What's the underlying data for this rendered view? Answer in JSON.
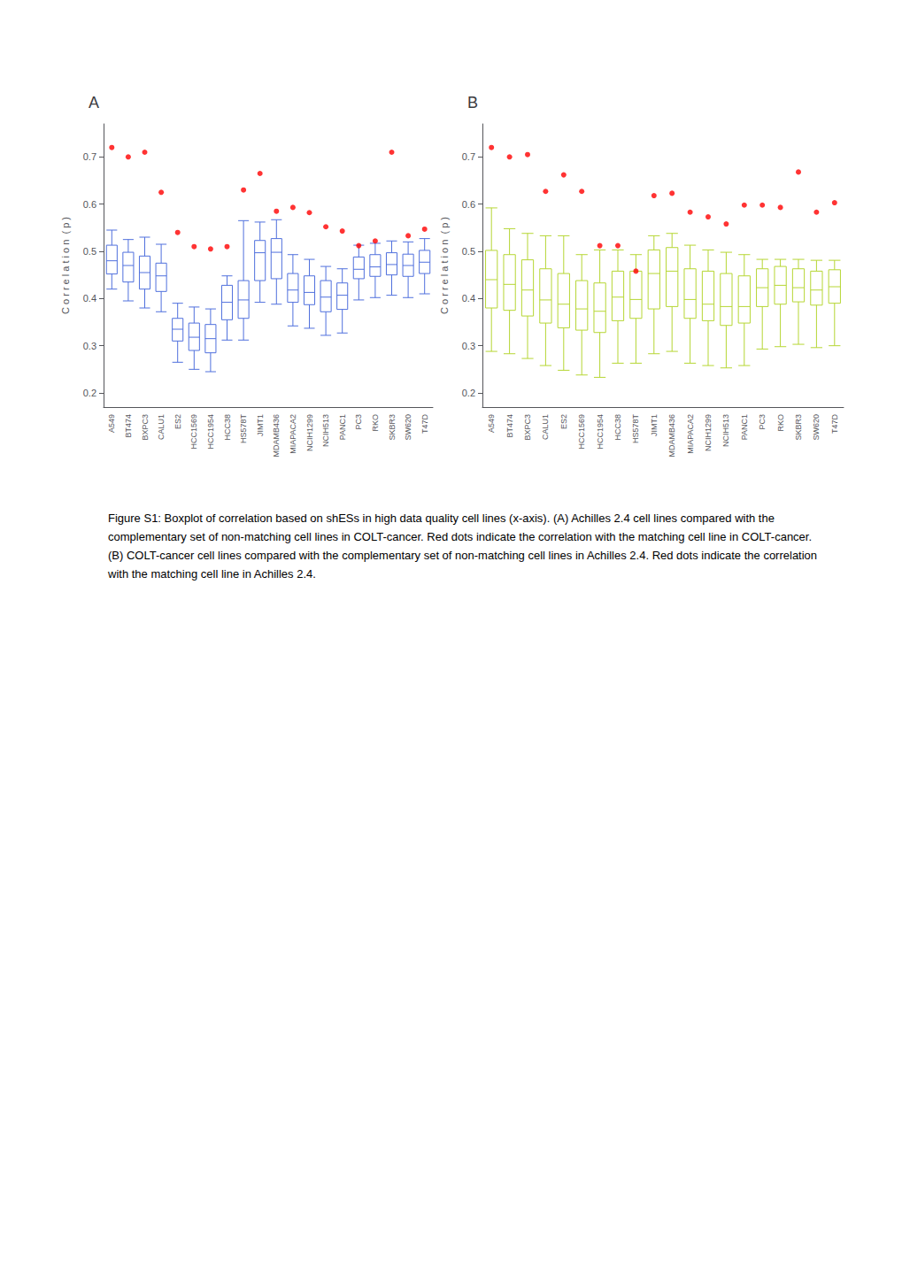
{
  "chart_data": [
    {
      "type": "box",
      "title": "A",
      "y_label": "C o r r e l a t i o n  ( p )",
      "categories": [
        "A549",
        "BT474",
        "BXPC3",
        "CALU1",
        "ES2",
        "HCC1569",
        "HCC1954",
        "HCC38",
        "HS578T",
        "JIMT1",
        "MDAMB436",
        "MIAPACA2",
        "NCIH1299",
        "NCIH513",
        "PANC1",
        "PC3",
        "RKO",
        "SKBR3",
        "SW620",
        "T47D"
      ],
      "series": [
        {
          "type": "box",
          "values": [
            {
              "whisker_low": 0.42,
              "q1": 0.452,
              "median": 0.48,
              "q3": 0.513,
              "whisker_high": 0.545
            },
            {
              "whisker_low": 0.395,
              "q1": 0.435,
              "median": 0.47,
              "q3": 0.498,
              "whisker_high": 0.525
            },
            {
              "whisker_low": 0.38,
              "q1": 0.42,
              "median": 0.455,
              "q3": 0.49,
              "whisker_high": 0.53
            },
            {
              "whisker_low": 0.372,
              "q1": 0.415,
              "median": 0.448,
              "q3": 0.475,
              "whisker_high": 0.515
            },
            {
              "whisker_low": 0.265,
              "q1": 0.31,
              "median": 0.335,
              "q3": 0.358,
              "whisker_high": 0.39
            },
            {
              "whisker_low": 0.25,
              "q1": 0.29,
              "median": 0.318,
              "q3": 0.348,
              "whisker_high": 0.382
            },
            {
              "whisker_low": 0.245,
              "q1": 0.285,
              "median": 0.315,
              "q3": 0.345,
              "whisker_high": 0.378
            },
            {
              "whisker_low": 0.312,
              "q1": 0.355,
              "median": 0.392,
              "q3": 0.428,
              "whisker_high": 0.448
            },
            {
              "whisker_low": 0.312,
              "q1": 0.358,
              "median": 0.397,
              "q3": 0.438,
              "whisker_high": 0.565
            },
            {
              "whisker_low": 0.392,
              "q1": 0.438,
              "median": 0.497,
              "q3": 0.523,
              "whisker_high": 0.562
            },
            {
              "whisker_low": 0.388,
              "q1": 0.442,
              "median": 0.498,
              "q3": 0.527,
              "whisker_high": 0.567
            },
            {
              "whisker_low": 0.342,
              "q1": 0.392,
              "median": 0.418,
              "q3": 0.453,
              "whisker_high": 0.493
            },
            {
              "whisker_low": 0.337,
              "q1": 0.387,
              "median": 0.413,
              "q3": 0.448,
              "whisker_high": 0.483
            },
            {
              "whisker_low": 0.322,
              "q1": 0.372,
              "median": 0.403,
              "q3": 0.438,
              "whisker_high": 0.468
            },
            {
              "whisker_low": 0.327,
              "q1": 0.377,
              "median": 0.407,
              "q3": 0.433,
              "whisker_high": 0.463
            },
            {
              "whisker_low": 0.397,
              "q1": 0.442,
              "median": 0.462,
              "q3": 0.488,
              "whisker_high": 0.513
            },
            {
              "whisker_low": 0.402,
              "q1": 0.447,
              "median": 0.467,
              "q3": 0.493,
              "whisker_high": 0.517
            },
            {
              "whisker_low": 0.407,
              "q1": 0.45,
              "median": 0.472,
              "q3": 0.497,
              "whisker_high": 0.522
            },
            {
              "whisker_low": 0.402,
              "q1": 0.447,
              "median": 0.47,
              "q3": 0.494,
              "whisker_high": 0.52
            },
            {
              "whisker_low": 0.41,
              "q1": 0.453,
              "median": 0.477,
              "q3": 0.502,
              "whisker_high": 0.527
            }
          ]
        },
        {
          "type": "scatter",
          "color": "#ff0000",
          "values": [
            0.72,
            0.7,
            0.71,
            0.625,
            0.54,
            0.51,
            0.505,
            0.51,
            0.63,
            0.665,
            0.585,
            0.593,
            0.582,
            0.552,
            0.543,
            0.512,
            0.522,
            0.71,
            0.533,
            0.547
          ]
        }
      ],
      "ylim": [
        0.17,
        0.77
      ],
      "yticks": [
        0.2,
        0.3,
        0.4,
        0.5,
        0.6,
        0.7
      ],
      "grid": false,
      "annotations": [
        "Figure S1: Boxplot of correlation based on shESs in high data quality cell lines (x-axis). (A) Achilles 2.4 cell lines compared with the complementary set of non-matching cell lines in COLT-cancer. Red dots indicate the correlation with the matching cell line in COLT-cancer. (B) COLT-cancer cell lines compared with the complementary set of non-matching cell lines in Achilles 2.4. Red dots indicate the correlation with the matching cell line in Achilles 2.4."
      ]
    },
    {
      "type": "box",
      "title": "B",
      "y_label": "C o r r e l a t i o n  ( p )",
      "categories": [
        "A549",
        "BT474",
        "BXPC3",
        "CALU1",
        "ES2",
        "HCC1569",
        "HCC1954",
        "HCC38",
        "HS578T",
        "JIMT1",
        "MDAMB436",
        "MIAPACA2",
        "NCIH1299",
        "NCIH513",
        "PANC1",
        "PC3",
        "RKO",
        "SKBR3",
        "SW620",
        "T47D"
      ],
      "series": [
        {
          "type": "box",
          "values": [
            {
              "whisker_low": 0.288,
              "q1": 0.38,
              "median": 0.44,
              "q3": 0.502,
              "whisker_high": 0.592
            },
            {
              "whisker_low": 0.283,
              "q1": 0.375,
              "median": 0.43,
              "q3": 0.493,
              "whisker_high": 0.548
            },
            {
              "whisker_low": 0.273,
              "q1": 0.363,
              "median": 0.418,
              "q3": 0.482,
              "whisker_high": 0.538
            },
            {
              "whisker_low": 0.258,
              "q1": 0.348,
              "median": 0.397,
              "q3": 0.463,
              "whisker_high": 0.533
            },
            {
              "whisker_low": 0.248,
              "q1": 0.338,
              "median": 0.388,
              "q3": 0.453,
              "whisker_high": 0.533
            },
            {
              "whisker_low": 0.238,
              "q1": 0.333,
              "median": 0.378,
              "q3": 0.438,
              "whisker_high": 0.493
            },
            {
              "whisker_low": 0.233,
              "q1": 0.328,
              "median": 0.373,
              "q3": 0.433,
              "whisker_high": 0.503
            },
            {
              "whisker_low": 0.263,
              "q1": 0.353,
              "median": 0.403,
              "q3": 0.458,
              "whisker_high": 0.503
            },
            {
              "whisker_low": 0.263,
              "q1": 0.358,
              "median": 0.398,
              "q3": 0.458,
              "whisker_high": 0.493
            },
            {
              "whisker_low": 0.283,
              "q1": 0.378,
              "median": 0.453,
              "q3": 0.503,
              "whisker_high": 0.533
            },
            {
              "whisker_low": 0.288,
              "q1": 0.383,
              "median": 0.458,
              "q3": 0.508,
              "whisker_high": 0.538
            },
            {
              "whisker_low": 0.263,
              "q1": 0.358,
              "median": 0.398,
              "q3": 0.463,
              "whisker_high": 0.513
            },
            {
              "whisker_low": 0.258,
              "q1": 0.353,
              "median": 0.388,
              "q3": 0.458,
              "whisker_high": 0.503
            },
            {
              "whisker_low": 0.253,
              "q1": 0.343,
              "median": 0.383,
              "q3": 0.453,
              "whisker_high": 0.498
            },
            {
              "whisker_low": 0.258,
              "q1": 0.348,
              "median": 0.383,
              "q3": 0.448,
              "whisker_high": 0.493
            },
            {
              "whisker_low": 0.293,
              "q1": 0.383,
              "median": 0.423,
              "q3": 0.463,
              "whisker_high": 0.483
            },
            {
              "whisker_low": 0.298,
              "q1": 0.388,
              "median": 0.428,
              "q3": 0.468,
              "whisker_high": 0.483
            },
            {
              "whisker_low": 0.303,
              "q1": 0.393,
              "median": 0.423,
              "q3": 0.463,
              "whisker_high": 0.483
            },
            {
              "whisker_low": 0.296,
              "q1": 0.386,
              "median": 0.418,
              "q3": 0.458,
              "whisker_high": 0.481
            },
            {
              "whisker_low": 0.3,
              "q1": 0.39,
              "median": 0.425,
              "q3": 0.461,
              "whisker_high": 0.481
            }
          ]
        },
        {
          "type": "scatter",
          "color": "#ff0000",
          "values": [
            0.72,
            0.7,
            0.705,
            0.627,
            0.662,
            0.627,
            0.512,
            0.512,
            0.458,
            0.618,
            0.623,
            0.583,
            0.573,
            0.558,
            0.598,
            0.598,
            0.593,
            0.668,
            0.583,
            0.603
          ]
        }
      ],
      "ylim": [
        0.17,
        0.77
      ],
      "yticks": [
        0.2,
        0.3,
        0.4,
        0.5,
        0.6,
        0.7
      ],
      "grid": false
    }
  ]
}
